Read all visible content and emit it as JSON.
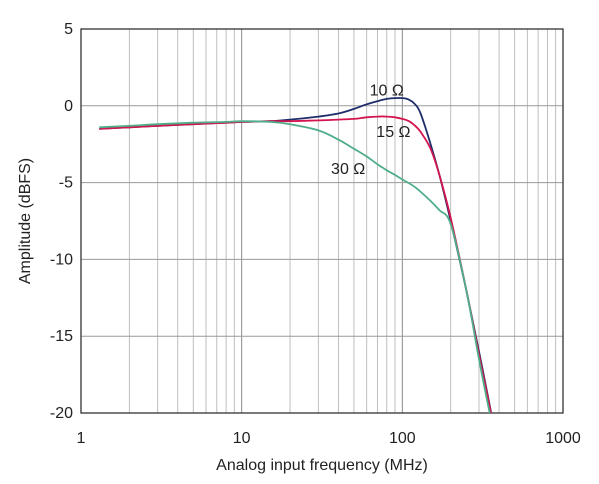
{
  "chart_data": {
    "type": "line",
    "title": "",
    "xlabel": "Analog input frequency (MHz)",
    "ylabel": "Amplitude (dBFS)",
    "xscale": "log",
    "xlim": [
      1,
      1000
    ],
    "ylim": [
      -20,
      5
    ],
    "grid": true,
    "x_ticks": [
      1,
      10,
      100,
      1000
    ],
    "x_tick_labels": [
      "1",
      "10",
      "100",
      "1000"
    ],
    "y_ticks": [
      5,
      0,
      -5,
      -10,
      -15,
      -20
    ],
    "y_tick_labels": [
      "5",
      "0",
      "-5",
      "-10",
      "-15",
      "-20"
    ],
    "series": [
      {
        "name": "10 Ω",
        "color": "#1f2d6b",
        "x": [
          1.3,
          2,
          3,
          5,
          8,
          10,
          15,
          20,
          30,
          40,
          50,
          60,
          70,
          80,
          90,
          100,
          110,
          120,
          130,
          150,
          170,
          200,
          250,
          300,
          350,
          370
        ],
        "y": [
          -1.5,
          -1.4,
          -1.3,
          -1.2,
          -1.1,
          -1.05,
          -1.0,
          -0.9,
          -0.7,
          -0.5,
          -0.2,
          0.1,
          0.3,
          0.45,
          0.5,
          0.5,
          0.4,
          0.1,
          -0.5,
          -2.5,
          -4.5,
          -7.5,
          -12.0,
          -16.0,
          -19.5,
          -21.0
        ]
      },
      {
        "name": "15 Ω",
        "color": "#d4144e",
        "x": [
          1.3,
          2,
          3,
          5,
          8,
          10,
          15,
          20,
          30,
          40,
          50,
          60,
          70,
          80,
          90,
          100,
          110,
          120,
          130,
          150,
          170,
          200,
          250,
          300,
          350,
          370
        ],
        "y": [
          -1.5,
          -1.4,
          -1.3,
          -1.2,
          -1.1,
          -1.05,
          -1.0,
          -1.0,
          -0.95,
          -0.9,
          -0.85,
          -0.75,
          -0.7,
          -0.7,
          -0.75,
          -0.85,
          -1.0,
          -1.3,
          -1.7,
          -2.8,
          -4.5,
          -7.3,
          -12.0,
          -16.2,
          -19.6,
          -21.0
        ]
      },
      {
        "name": "30 Ω",
        "color": "#4fae8a",
        "x": [
          1.3,
          2,
          3,
          5,
          8,
          10,
          15,
          20,
          30,
          40,
          50,
          60,
          70,
          80,
          90,
          100,
          120,
          150,
          170,
          200,
          250,
          300,
          350,
          370
        ],
        "y": [
          -1.4,
          -1.3,
          -1.2,
          -1.1,
          -1.05,
          -1.0,
          -1.05,
          -1.2,
          -1.6,
          -2.2,
          -2.8,
          -3.3,
          -3.8,
          -4.2,
          -4.5,
          -4.8,
          -5.3,
          -6.2,
          -6.8,
          -7.7,
          -12.0,
          -16.5,
          -20.0,
          -21.0
        ]
      }
    ],
    "annotations": [
      {
        "text": "10 Ω",
        "x": 80,
        "y": 1.0
      },
      {
        "text": "15 Ω",
        "x": 88,
        "y": -1.7
      },
      {
        "text": "30 Ω",
        "x": 46,
        "y": -4.1
      }
    ]
  }
}
